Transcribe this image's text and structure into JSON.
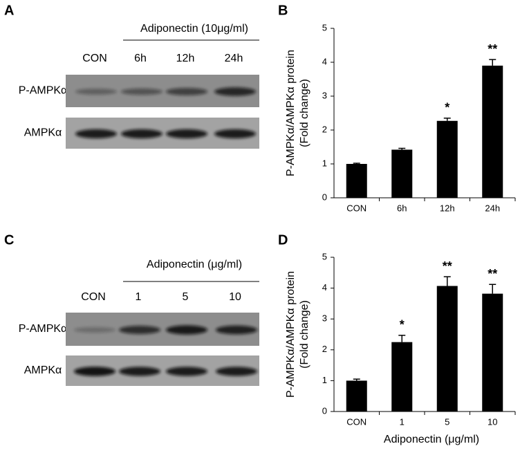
{
  "panels": [
    "A",
    "B",
    "C",
    "D"
  ],
  "blots": [
    {
      "treatment": "Adiponectin (10μg/ml)",
      "lanes": [
        "CON",
        "6h",
        "12h",
        "24h"
      ],
      "rows": [
        "P-AMPKα",
        "AMPKα"
      ]
    },
    {
      "treatment": "Adiponectin (μg/ml)",
      "lanes": [
        "CON",
        "1",
        "5",
        "10"
      ],
      "rows": [
        "P-AMPKα",
        "AMPKα"
      ]
    }
  ],
  "chart_data": [
    {
      "type": "bar",
      "ylabel": [
        "P-AMPKα/AMPKα protein",
        "(Fold change)"
      ],
      "categories": [
        "CON",
        "6h",
        "12h",
        "24h"
      ],
      "values": [
        1.0,
        1.42,
        2.27,
        3.9
      ],
      "errors": [
        0.02,
        0.04,
        0.08,
        0.18
      ],
      "annotations": [
        null,
        null,
        "*",
        "**"
      ],
      "color": "#000000",
      "ylim": [
        0,
        5
      ],
      "yticks": [
        0,
        1,
        2,
        3,
        4,
        5
      ]
    },
    {
      "type": "bar",
      "ylabel": [
        "P-AMPKα/AMPKα protein",
        "(Fold change)"
      ],
      "xlabel": "Adiponectin (μg/ml)",
      "categories": [
        "CON",
        "1",
        "5",
        "10"
      ],
      "values": [
        1.0,
        2.25,
        4.07,
        3.82
      ],
      "errors": [
        0.05,
        0.22,
        0.3,
        0.3
      ],
      "annotations": [
        null,
        "*",
        "**",
        "**"
      ],
      "color": "#000000",
      "ylim": [
        0,
        5
      ],
      "yticks": [
        0,
        1,
        2,
        3,
        4,
        5
      ]
    }
  ]
}
